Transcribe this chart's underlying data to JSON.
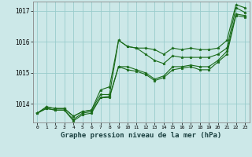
{
  "title": "Graphe pression niveau de la mer (hPa)",
  "bg_color": "#cce8e8",
  "grid_color": "#99cccc",
  "line_color": "#1a6b1a",
  "x_labels": [
    "0",
    "1",
    "2",
    "3",
    "4",
    "5",
    "6",
    "7",
    "8",
    "9",
    "10",
    "11",
    "12",
    "13",
    "14",
    "15",
    "16",
    "17",
    "18",
    "19",
    "20",
    "21",
    "22",
    "23"
  ],
  "ylim": [
    1013.4,
    1017.3
  ],
  "yticks": [
    1014,
    1015,
    1016,
    1017
  ],
  "series": [
    [
      1013.7,
      1013.9,
      1013.85,
      1013.85,
      1013.6,
      1013.75,
      1013.8,
      1014.45,
      1014.55,
      1016.05,
      1015.85,
      1015.8,
      1015.8,
      1015.75,
      1015.6,
      1015.8,
      1015.75,
      1015.8,
      1015.75,
      1015.75,
      1015.8,
      1016.05,
      1017.2,
      1017.1
    ],
    [
      1013.7,
      1013.9,
      1013.85,
      1013.85,
      1013.6,
      1013.75,
      1013.8,
      1014.3,
      1014.3,
      1016.05,
      1015.85,
      1015.8,
      1015.6,
      1015.4,
      1015.3,
      1015.55,
      1015.5,
      1015.5,
      1015.5,
      1015.5,
      1015.6,
      1015.8,
      1017.1,
      1016.95
    ],
    [
      1013.7,
      1013.85,
      1013.8,
      1013.8,
      1013.5,
      1013.7,
      1013.75,
      1014.2,
      1014.25,
      1015.2,
      1015.2,
      1015.1,
      1015.0,
      1014.8,
      1014.9,
      1015.2,
      1015.2,
      1015.25,
      1015.2,
      1015.2,
      1015.4,
      1015.7,
      1016.9,
      1016.85
    ],
    [
      1013.7,
      1013.85,
      1013.8,
      1013.8,
      1013.45,
      1013.65,
      1013.7,
      1014.2,
      1014.2,
      1015.2,
      1015.1,
      1015.05,
      1014.95,
      1014.75,
      1014.85,
      1015.1,
      1015.15,
      1015.2,
      1015.1,
      1015.1,
      1015.35,
      1015.6,
      1016.85,
      1016.8
    ]
  ]
}
